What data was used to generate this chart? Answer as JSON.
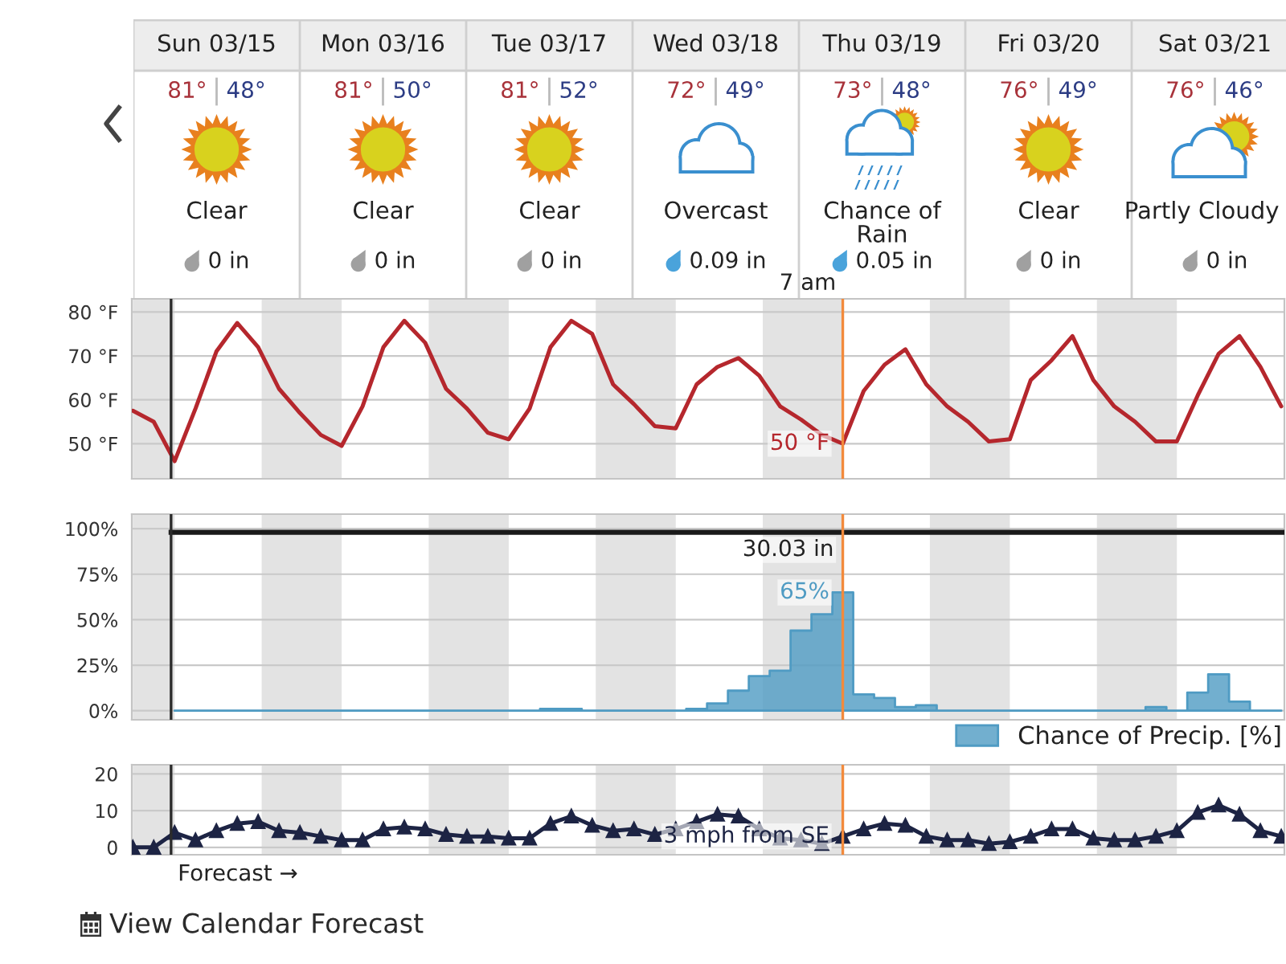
{
  "chart_data": [
    {
      "type": "other",
      "categories": [
        "Sun 03/15",
        "Mon 03/16",
        "Tue 03/17",
        "Wed 03/18",
        "Thu 03/19",
        "Fri 03/20",
        "Sat 03/21"
      ],
      "series": [
        {
          "color": "#a8323a",
          "values": [
            81,
            81,
            81,
            72,
            73,
            76,
            76
          ],
          "value_labels": [
            "81°",
            "81°",
            "81°",
            "72°",
            "73°",
            "76°",
            "76°"
          ]
        },
        {
          "color": "#2c3c84",
          "values": [
            48,
            50,
            52,
            49,
            48,
            49,
            46
          ],
          "value_labels": [
            "48°",
            "50°",
            "52°",
            "49°",
            "48°",
            "49°",
            "46°"
          ]
        },
        {
          "color": "#222222",
          "values": [
            0,
            0,
            0,
            0.09,
            0.05,
            0,
            0
          ],
          "value_labels": [
            "0 in",
            "0 in",
            "0 in",
            "0.09 in",
            "0.05 in",
            "0 in",
            "0 in"
          ]
        }
      ],
      "annotations": [
        {
          "text": "Clear",
          "x": "Sun 03/15"
        },
        {
          "text": "Clear",
          "x": "Mon 03/16"
        },
        {
          "text": "Clear",
          "x": "Tue 03/17"
        },
        {
          "text": "Overcast",
          "x": "Wed 03/18"
        },
        {
          "text": "Chance of\nRain",
          "x": "Thu 03/19"
        },
        {
          "text": "Clear",
          "x": "Fri 03/20"
        },
        {
          "text": "Partly Cloudy",
          "x": "Sat 03/21"
        }
      ]
    },
    {
      "type": "line",
      "categories": [
        null,
        null,
        null,
        null,
        null,
        null,
        null,
        null,
        null,
        null,
        null,
        null,
        null,
        null,
        null,
        null,
        null,
        null,
        null,
        null,
        null,
        null,
        null,
        null,
        null,
        null,
        null,
        null,
        null,
        null,
        null,
        null,
        null,
        null,
        null,
        null,
        null,
        null,
        null,
        null,
        null,
        null,
        null,
        null,
        null,
        null,
        null,
        null,
        null,
        null,
        null,
        null,
        null,
        null,
        null,
        null
      ],
      "ylim": [
        42,
        83
      ],
      "yticks": [
        {
          "value": 50,
          "label": "50 °F"
        },
        {
          "value": 60,
          "label": "60 °F"
        },
        {
          "value": 70,
          "label": "70 °F"
        },
        {
          "value": 80,
          "label": "80 °F"
        }
      ],
      "tick_labels": "y",
      "grid": "y",
      "series": [
        {
          "color": "#b5272d",
          "values": [
            57.5,
            55,
            46,
            58,
            71,
            77.5,
            72,
            62.5,
            57,
            52,
            49.5,
            58.5,
            72,
            78,
            73,
            62.5,
            58,
            52.5,
            51,
            58,
            72,
            78,
            75,
            63.5,
            59,
            54,
            53.5,
            63.5,
            67.5,
            69.5,
            65.5,
            58.5,
            55.5,
            52,
            50,
            62,
            68,
            71.5,
            63.5,
            58.5,
            55,
            50.5,
            51,
            64.5,
            69,
            74.5,
            64.5,
            58.5,
            55,
            50.5,
            50.5,
            61,
            70.5,
            74.5,
            67.5,
            58.5
          ],
          "value_labels": [
            null,
            null,
            null,
            null,
            null,
            null,
            null,
            null,
            null,
            null,
            null,
            null,
            null,
            null,
            null,
            null,
            null,
            null,
            null,
            null,
            null,
            null,
            null,
            null,
            null,
            null,
            null,
            null,
            null,
            null,
            null,
            null,
            null,
            null,
            "50 °F",
            null,
            null,
            null,
            null,
            null,
            null,
            null,
            null,
            null,
            null,
            null,
            null,
            null,
            null,
            null,
            null,
            null,
            null,
            null,
            null,
            null
          ]
        }
      ],
      "annotations": [
        "7 am"
      ]
    },
    {
      "type": "area",
      "categories": [
        null,
        null,
        null,
        null,
        null,
        null,
        null,
        null,
        null,
        null,
        null,
        null,
        null,
        null,
        null,
        null,
        null,
        null,
        null,
        null,
        null,
        null,
        null,
        null,
        null,
        null,
        null,
        null,
        null,
        null,
        null,
        null,
        null,
        null,
        null,
        null,
        null,
        null,
        null,
        null,
        null,
        null,
        null,
        null,
        null,
        null,
        null,
        null,
        null,
        null,
        null,
        null,
        null,
        null,
        null,
        null
      ],
      "ylim": [
        -5,
        108
      ],
      "yticks": [
        {
          "value": 0,
          "label": "0%"
        },
        {
          "value": 25,
          "label": "25%"
        },
        {
          "value": 50,
          "label": "50%"
        },
        {
          "value": 75,
          "label": "75%"
        },
        {
          "value": 100,
          "label": "100%"
        }
      ],
      "tick_labels": "y",
      "grid": "y",
      "legend": "bottom right",
      "series": [
        {
          "name": "Chance of Precip. [%]",
          "type": "area",
          "color": "#4f9bc3",
          "values": [
            null,
            null,
            0,
            0,
            0,
            0,
            0,
            0,
            0,
            0,
            0,
            0,
            0,
            0,
            0,
            0,
            0,
            0,
            0,
            0,
            1,
            1,
            0,
            0,
            0,
            0,
            0,
            1,
            4,
            11,
            19,
            22,
            44,
            53,
            65,
            9,
            7,
            2,
            3,
            0,
            0,
            0,
            0,
            0,
            0,
            0,
            0,
            0,
            0,
            2,
            0,
            10,
            20,
            5,
            0,
            0
          ],
          "value_labels": [
            null,
            null,
            null,
            null,
            null,
            null,
            null,
            null,
            null,
            null,
            null,
            null,
            null,
            null,
            null,
            null,
            null,
            null,
            null,
            null,
            null,
            null,
            null,
            null,
            null,
            null,
            null,
            null,
            null,
            null,
            null,
            null,
            null,
            null,
            "65%",
            null,
            null,
            null,
            null,
            null,
            null,
            null,
            null,
            null,
            null,
            null,
            null,
            null,
            null,
            null,
            null,
            null,
            null,
            null,
            null,
            null
          ]
        }
      ],
      "ref_lines": [
        {
          "axis": "y",
          "value": 98,
          "label": "30.03 in",
          "color": "#1a1a1a"
        }
      ]
    },
    {
      "type": "line",
      "marker": "triangle",
      "categories": [
        null,
        null,
        null,
        null,
        null,
        null,
        null,
        null,
        null,
        null,
        null,
        null,
        null,
        null,
        null,
        null,
        null,
        null,
        null,
        null,
        null,
        null,
        null,
        null,
        null,
        null,
        null,
        null,
        null,
        null,
        null,
        null,
        null,
        null,
        null,
        null,
        null,
        null,
        null,
        null,
        null,
        null,
        null,
        null,
        null,
        null,
        null,
        null,
        null,
        null,
        null,
        null,
        null,
        null,
        null,
        null
      ],
      "ylim": [
        -2,
        22.5
      ],
      "yticks": [
        0,
        10,
        20
      ],
      "tick_labels": "y",
      "grid": "y",
      "series": [
        {
          "color": "#1d2444",
          "values": [
            0,
            0,
            4,
            2,
            4.5,
            6.5,
            7,
            4.5,
            4,
            3,
            2,
            2,
            5,
            5.5,
            5,
            3.5,
            3,
            3,
            2.5,
            2.5,
            6.5,
            8.5,
            6,
            4.5,
            5,
            3.5,
            5,
            7,
            9,
            8.5,
            5,
            2.5,
            2,
            1,
            3,
            5,
            6.5,
            6,
            3,
            2,
            2,
            1,
            1.5,
            3,
            5,
            5,
            2.5,
            2,
            2,
            3,
            4.5,
            9.5,
            11.5,
            9,
            4.5,
            3
          ],
          "value_labels": [
            null,
            null,
            null,
            null,
            null,
            null,
            null,
            null,
            null,
            null,
            null,
            null,
            null,
            null,
            null,
            null,
            null,
            null,
            null,
            null,
            null,
            null,
            null,
            null,
            null,
            null,
            null,
            null,
            null,
            null,
            null,
            null,
            null,
            null,
            "3 mph from SE",
            null,
            null,
            null,
            null,
            null,
            null,
            null,
            null,
            null,
            null,
            null,
            null,
            null,
            null,
            null,
            null,
            null,
            null,
            null,
            null,
            null
          ]
        }
      ],
      "annotations": [
        "Forecast →",
        "View Calendar Forecast"
      ]
    }
  ]
}
